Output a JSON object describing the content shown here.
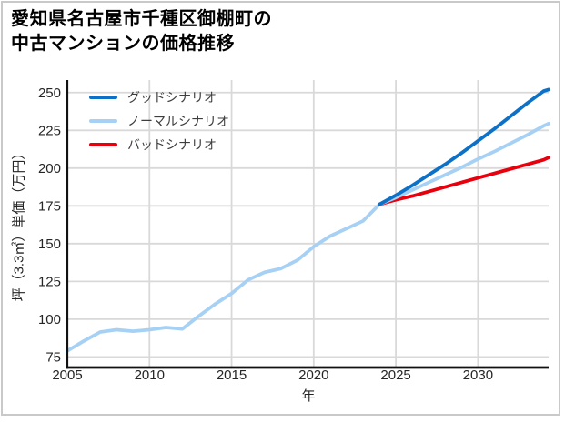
{
  "card": {
    "background": "#ffffff",
    "border_color": "#c9c9c9"
  },
  "title": {
    "line1": "愛知県名古屋市千種区御棚町の",
    "line2": "中古マンションの価格推移"
  },
  "legend": [
    {
      "label": "グッドシナリオ",
      "color": "#0e71c8"
    },
    {
      "label": "ノーマルシナリオ",
      "color": "#a7d1f4"
    },
    {
      "label": "バッドシナリオ",
      "color": "#e8000d"
    }
  ],
  "chart_data": {
    "type": "line",
    "title": "愛知県名古屋市千種区御棚町の中古マンションの価格推移",
    "xlabel": "年",
    "ylabel": "坪（3.3㎡）単価（万円）",
    "xlim": [
      2005,
      2034.3
    ],
    "ylim": [
      68,
      258.3
    ],
    "x_ticks": [
      2005,
      2010,
      2015,
      2020,
      2025,
      2030
    ],
    "y_ticks": [
      75,
      100,
      125,
      150,
      175,
      200,
      225,
      250
    ],
    "grid": true,
    "grid_color": "#d9d9d9",
    "axis_color": "#111111",
    "tick_label_color": "#262626",
    "legend_position": "upper-left",
    "series": [
      {
        "id": "history",
        "color": "#a7d1f4",
        "x": [
          2005,
          2006,
          2007,
          2008,
          2009,
          2010,
          2011,
          2012,
          2013,
          2014,
          2015,
          2016,
          2017,
          2018,
          2019,
          2020,
          2021,
          2022,
          2023,
          2024
        ],
        "y": [
          79,
          85.5,
          91.5,
          93,
          92,
          93,
          94.5,
          93.5,
          102,
          110,
          117,
          126,
          131,
          133.5,
          139,
          148,
          155,
          160,
          165,
          176
        ]
      },
      {
        "id": "good",
        "name": "グッドシナリオ",
        "color": "#0e71c8",
        "x": [
          2024,
          2025,
          2026,
          2027,
          2028,
          2029,
          2030,
          2031,
          2032,
          2033,
          2034,
          2034.3
        ],
        "y": [
          176,
          182,
          188.5,
          195.5,
          202.5,
          210,
          218,
          226,
          234.5,
          243,
          251,
          252
        ]
      },
      {
        "id": "normal",
        "name": "ノーマルシナリオ",
        "color": "#a7d1f4",
        "x": [
          2024,
          2025,
          2026,
          2027,
          2028,
          2029,
          2030,
          2031,
          2032,
          2033,
          2034,
          2034.3
        ],
        "y": [
          176,
          180.5,
          185.5,
          190.5,
          195.5,
          200.5,
          206,
          211,
          216.5,
          222,
          228,
          229.5
        ]
      },
      {
        "id": "bad",
        "name": "バッドシナリオ",
        "color": "#e8000d",
        "x": [
          2024,
          2025,
          2026,
          2027,
          2028,
          2029,
          2030,
          2031,
          2032,
          2033,
          2034,
          2034.3
        ],
        "y": [
          176,
          179,
          181.5,
          184.5,
          187.5,
          190.5,
          193.5,
          196.5,
          199.5,
          202.5,
          205.5,
          207
        ]
      }
    ]
  }
}
